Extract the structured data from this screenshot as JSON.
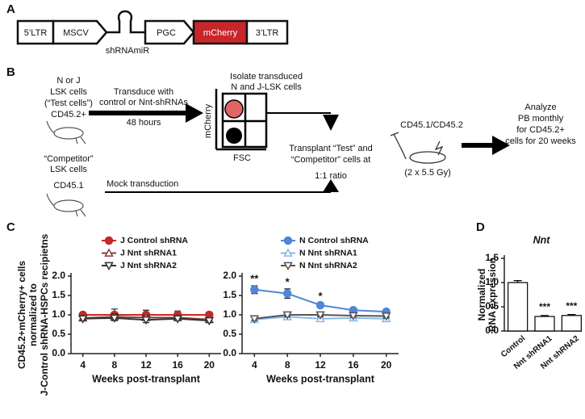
{
  "panel_labels": [
    "A",
    "B",
    "C",
    "D"
  ],
  "panel_a": {
    "elements": [
      "5’LTR",
      "MSCV",
      "shRNAmiR",
      "PGC",
      "mCherry",
      "3’LTR"
    ]
  },
  "panel_b": {
    "test_cells": [
      "N or J",
      "LSK cells",
      "(“Test cells”)",
      "CD45.2+"
    ],
    "transduce": [
      "Transduce with",
      "control or Nnt-shRNAs"
    ],
    "duration": "48 hours",
    "isolate": [
      "Isolate transduced",
      "N and J-LSK cells"
    ],
    "y_axis": "mCherry",
    "x_axis": "FSC",
    "transplant": [
      "Transplant “Test” and",
      "“Competitor” cells at",
      "1:1 ratio"
    ],
    "recipients": "CD45.1/CD45.2",
    "irradiation": "(2 x 5.5 Gy)",
    "analyze": [
      "Analyze",
      "PB monthly",
      "for CD45.2+",
      "cells for 20 weeks"
    ],
    "competitor": [
      "“Competitor”",
      "LSK cells"
    ],
    "competitor_marker": "CD45.1",
    "mock": "Mock transduction"
  },
  "chart_data": [
    {
      "type": "line",
      "x": [
        4,
        8,
        12,
        16,
        20
      ],
      "xlim": [
        2.5,
        21.5
      ],
      "xticks": [
        4,
        8,
        12,
        16,
        20
      ],
      "ylim": [
        0,
        2
      ],
      "yticks": [
        {
          "value": 0,
          "label": "0.0"
        },
        0.5,
        {
          "value": 1,
          "label": "1.0"
        },
        1.5,
        {
          "value": 2,
          "label": "2.0"
        }
      ],
      "ylabel": [
        "CD45.2+mCherry+ cells",
        "normalized to",
        "J-Control shRNA-HSPCs recipietns"
      ],
      "xlabel": "Weeks post-transplant",
      "legend": "top-left",
      "series": [
        {
          "name": "J Control shRNA",
          "color": "#c62828",
          "marker": "circle",
          "filled": true,
          "values": [
            1,
            1,
            1,
            1,
            1
          ],
          "errors": [
            0.05,
            0.15,
            0.12,
            0.1,
            0.07
          ]
        },
        {
          "name": "J Nnt shRNA1",
          "color": "#8d3b3b",
          "marker": "triangle-up",
          "filled": false,
          "values": [
            0.92,
            0.95,
            0.93,
            0.93,
            0.88
          ],
          "errors": [
            0.04,
            0.08,
            0.06,
            0.05,
            0.05
          ]
        },
        {
          "name": "J Nnt shRNA2",
          "color": "#333333",
          "marker": "triangle-down",
          "filled": false,
          "values": [
            0.9,
            0.92,
            0.87,
            0.9,
            0.85
          ],
          "errors": [
            0.04,
            0.06,
            0.07,
            0.05,
            0.05
          ]
        }
      ]
    },
    {
      "type": "line",
      "x": [
        4,
        8,
        12,
        16,
        20
      ],
      "xlim": [
        2.5,
        21.5
      ],
      "xticks": [
        4,
        8,
        12,
        16,
        20
      ],
      "ylim": [
        0,
        2
      ],
      "yticks": [
        {
          "value": 0,
          "label": "0.0"
        },
        0.5,
        {
          "value": 1,
          "label": "1.0"
        },
        1.5,
        {
          "value": 2,
          "label": "2.0"
        }
      ],
      "xlabel": "Weeks post-transplant",
      "legend": "top-left",
      "series": [
        {
          "name": "N Control shRNA",
          "color": "#4f86d8",
          "marker": "circle",
          "filled": true,
          "values": [
            1.65,
            1.55,
            1.25,
            1.12,
            1.08
          ],
          "errors": [
            0.1,
            0.12,
            0.05,
            0.05,
            0.06
          ],
          "significance": [
            "**",
            "*",
            "*",
            null,
            null
          ]
        },
        {
          "name": "N Nnt shRNA1",
          "color": "#86b9ea",
          "marker": "triangle-up",
          "filled": false,
          "values": [
            0.88,
            0.95,
            0.9,
            0.92,
            0.9
          ],
          "errors": [
            0.06,
            0.05,
            0.06,
            0.05,
            0.05
          ]
        },
        {
          "name": "N Nnt shRNA2",
          "color": "#555555",
          "marker": "triangle-down",
          "filled": false,
          "values": [
            0.9,
            1,
            1,
            0.98,
            0.97
          ],
          "errors": [
            0.05,
            0.05,
            0.05,
            0.04,
            0.05
          ]
        }
      ]
    },
    {
      "type": "bar",
      "title": "Nnt",
      "categories": [
        "Control",
        "Nnt shRNA1",
        "Nnt shRNA2"
      ],
      "values": [
        1,
        0.3,
        0.32
      ],
      "errors": [
        0.04,
        0.02,
        0.02
      ],
      "significance": [
        null,
        "***",
        "***"
      ],
      "color": "#ffffff",
      "edgecolor": "#000000",
      "ylim": [
        0,
        1.5
      ],
      "yticks": [
        {
          "value": 0,
          "label": "0.0"
        },
        0.5,
        {
          "value": 1,
          "label": "1.0"
        },
        1.5
      ],
      "ylabel": [
        "Normalized",
        "RNA expression"
      ]
    }
  ]
}
